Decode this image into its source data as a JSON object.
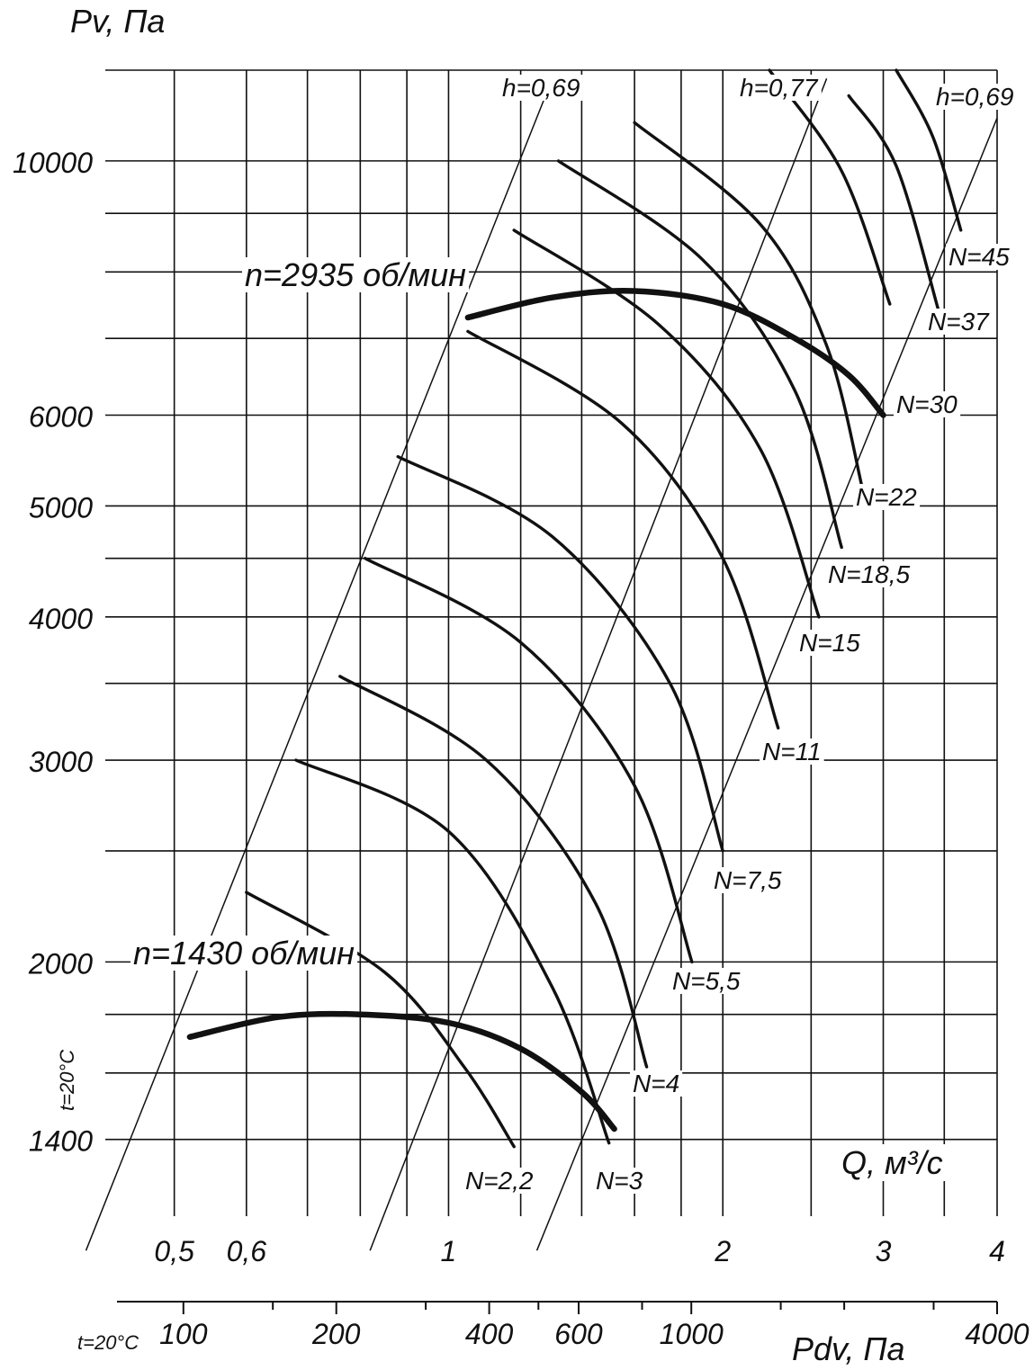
{
  "chart_data": {
    "type": "line",
    "y_axis": {
      "title": "Pv, Па",
      "scale": "log",
      "range": [
        1200,
        12000
      ],
      "tick_labels": [
        {
          "value": 10000,
          "label": "10000"
        },
        {
          "value": 6000,
          "label": "6000"
        },
        {
          "value": 5000,
          "label": "5000"
        },
        {
          "value": 4000,
          "label": "4000"
        },
        {
          "value": 3000,
          "label": "3000"
        },
        {
          "value": 2000,
          "label": "2000"
        },
        {
          "value": 1400,
          "label": "1400"
        }
      ],
      "gridlines": [
        1400,
        1600,
        1800,
        2000,
        2500,
        3000,
        3500,
        4000,
        4500,
        5000,
        6000,
        7000,
        8000,
        9000,
        10000,
        12000
      ],
      "temperature_note": "t=20°C"
    },
    "x_axis": {
      "title": "Q, м³/с",
      "scale": "log",
      "range": [
        0.42,
        4
      ],
      "tick_labels": [
        {
          "value": 0.5,
          "label": "0,5"
        },
        {
          "value": 0.6,
          "label": "0,6"
        },
        {
          "value": 1,
          "label": "1"
        },
        {
          "value": 2,
          "label": "2"
        },
        {
          "value": 3,
          "label": "3"
        },
        {
          "value": 4,
          "label": "4"
        }
      ],
      "gridlines": [
        0.5,
        0.6,
        0.7,
        0.8,
        0.9,
        1,
        1.2,
        1.4,
        1.6,
        1.8,
        2,
        2.5,
        3,
        3.5,
        4
      ]
    },
    "pdv_axis": {
      "title": "Pdv, Па",
      "temperature_note": "t=20°C",
      "tick_labels": [
        {
          "value": 100,
          "label": "100"
        },
        {
          "value": 200,
          "label": "200"
        },
        {
          "value": 400,
          "label": "400"
        },
        {
          "value": 600,
          "label": "600"
        },
        {
          "value": 1000,
          "label": "1000"
        },
        {
          "value": 4000,
          "label": "4000"
        }
      ],
      "minor_ticks": [
        150,
        300,
        500,
        800,
        1500,
        2000,
        3000
      ]
    },
    "speed_curves": [
      {
        "name": "n=2935 об/мин",
        "points": [
          [
            1.05,
            7300
          ],
          [
            1.3,
            7600
          ],
          [
            1.6,
            7700
          ],
          [
            2.0,
            7500
          ],
          [
            2.4,
            7000
          ],
          [
            2.75,
            6500
          ],
          [
            3.0,
            6000
          ]
        ]
      },
      {
        "name": "n=1430 об/мин",
        "points": [
          [
            0.52,
            1720
          ],
          [
            0.65,
            1790
          ],
          [
            0.8,
            1800
          ],
          [
            1.0,
            1770
          ],
          [
            1.2,
            1680
          ],
          [
            1.4,
            1540
          ],
          [
            1.52,
            1430
          ]
        ]
      }
    ],
    "efficiency_lines": [
      {
        "name": "h=0,69",
        "points": [
          [
            0.4,
            1120
          ],
          [
            1.3,
            11800
          ]
        ]
      },
      {
        "name": "h=0,77",
        "points": [
          [
            0.82,
            1120
          ],
          [
            2.6,
            11800
          ]
        ]
      },
      {
        "name": "h=0,69",
        "points": [
          [
            1.25,
            1120
          ],
          [
            4.0,
            10900
          ]
        ]
      }
    ],
    "power_curves": [
      {
        "name": "N=2,2",
        "points": [
          [
            0.6,
            2300
          ],
          [
            0.85,
            1960
          ],
          [
            1.04,
            1620
          ],
          [
            1.18,
            1380
          ]
        ]
      },
      {
        "name": "N=3",
        "points": [
          [
            0.68,
            3000
          ],
          [
            1.0,
            2600
          ],
          [
            1.3,
            1900
          ],
          [
            1.5,
            1390
          ]
        ]
      },
      {
        "name": "N=4",
        "points": [
          [
            0.76,
            3550
          ],
          [
            1.1,
            3000
          ],
          [
            1.45,
            2250
          ],
          [
            1.65,
            1620
          ]
        ]
      },
      {
        "name": "N=5,5",
        "points": [
          [
            0.81,
            4500
          ],
          [
            1.2,
            3800
          ],
          [
            1.6,
            2850
          ],
          [
            1.85,
            2000
          ]
        ]
      },
      {
        "name": "N=7,5",
        "points": [
          [
            0.88,
            5520
          ],
          [
            1.3,
            4700
          ],
          [
            1.75,
            3500
          ],
          [
            2.0,
            2500
          ]
        ]
      },
      {
        "name": "N=11",
        "points": [
          [
            1.05,
            7100
          ],
          [
            1.55,
            5900
          ],
          [
            2.0,
            4500
          ],
          [
            2.3,
            3200
          ]
        ]
      },
      {
        "name": "N=15",
        "points": [
          [
            1.18,
            8700
          ],
          [
            1.7,
            7200
          ],
          [
            2.2,
            5600
          ],
          [
            2.55,
            4000
          ]
        ]
      },
      {
        "name": "N=18,5",
        "points": [
          [
            1.32,
            10000
          ],
          [
            1.9,
            8200
          ],
          [
            2.4,
            6300
          ],
          [
            2.7,
            4600
          ]
        ]
      },
      {
        "name": "N=22",
        "points": [
          [
            1.6,
            10800
          ],
          [
            2.2,
            8800
          ],
          [
            2.6,
            6900
          ],
          [
            2.85,
            5150
          ]
        ]
      },
      {
        "name": "N=30",
        "points": [
          [
            2.25,
            12000
          ],
          [
            2.7,
            9800
          ],
          [
            3.05,
            7500
          ]
        ]
      },
      {
        "name": "N=37",
        "points": [
          [
            2.75,
            11400
          ],
          [
            3.1,
            9900
          ],
          [
            3.45,
            7400
          ]
        ]
      },
      {
        "name": "N=45",
        "points": [
          [
            3.1,
            12000
          ],
          [
            3.4,
            10500
          ],
          [
            3.65,
            8700
          ]
        ]
      }
    ]
  }
}
